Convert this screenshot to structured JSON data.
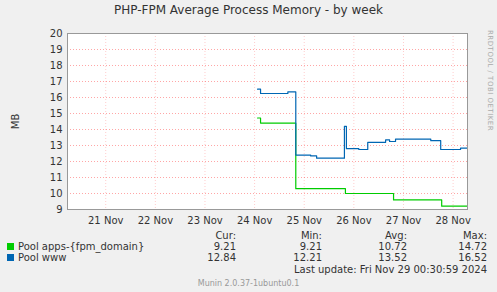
{
  "chart_data": {
    "type": "line",
    "title": "PHP-FPM Average Process Memory - by week",
    "y_label": "MB",
    "line_style": "step",
    "grid": true,
    "legend": "bottom",
    "xlim": [
      20.73,
      28.79
    ],
    "xticks": [
      {
        "value": 21.5,
        "label": "21 Nov"
      },
      {
        "value": 22.5,
        "label": "22 Nov"
      },
      {
        "value": 23.5,
        "label": "23 Nov"
      },
      {
        "value": 24.5,
        "label": "24 Nov"
      },
      {
        "value": 25.5,
        "label": "25 Nov"
      },
      {
        "value": 26.5,
        "label": "26 Nov"
      },
      {
        "value": 27.5,
        "label": "27 Nov"
      },
      {
        "value": 28.5,
        "label": "28 Nov"
      }
    ],
    "ylim": [
      9,
      20
    ],
    "yticks": [
      9,
      10,
      11,
      12,
      13,
      14,
      15,
      16,
      17,
      18,
      19,
      20
    ],
    "stat_columns": [
      "Cur:",
      "Min:",
      "Avg:",
      "Max:"
    ],
    "series": [
      {
        "name": "Pool apps-{fpm_domain}",
        "color": "#00cc00",
        "x": [
          24.56,
          24.62,
          25.33,
          26.33,
          27.3,
          28.27,
          28.79
        ],
        "values": [
          14.72,
          14.4,
          10.3,
          10.0,
          9.6,
          9.21,
          9.21
        ],
        "stats": [
          9.21,
          9.21,
          10.72,
          14.72
        ]
      },
      {
        "name": "Pool www",
        "color": "#0066b3",
        "x": [
          24.56,
          24.62,
          25.17,
          25.33,
          25.63,
          25.75,
          26.31,
          26.35,
          26.6,
          26.78,
          27.14,
          27.22,
          27.34,
          28.05,
          28.25,
          28.65,
          28.79
        ],
        "values": [
          16.52,
          16.25,
          16.35,
          12.4,
          12.35,
          12.21,
          14.2,
          12.8,
          12.75,
          13.2,
          13.35,
          13.25,
          13.4,
          13.3,
          12.75,
          12.84,
          12.84
        ],
        "stats": [
          12.84,
          12.21,
          13.52,
          16.52
        ]
      }
    ],
    "last_update": "Last update: Fri Nov 29 00:30:59 2024",
    "watermark": "RRDTOOL / TOBI OETIKER",
    "footer": "Munin 2.0.37-1ubuntu0.1"
  }
}
